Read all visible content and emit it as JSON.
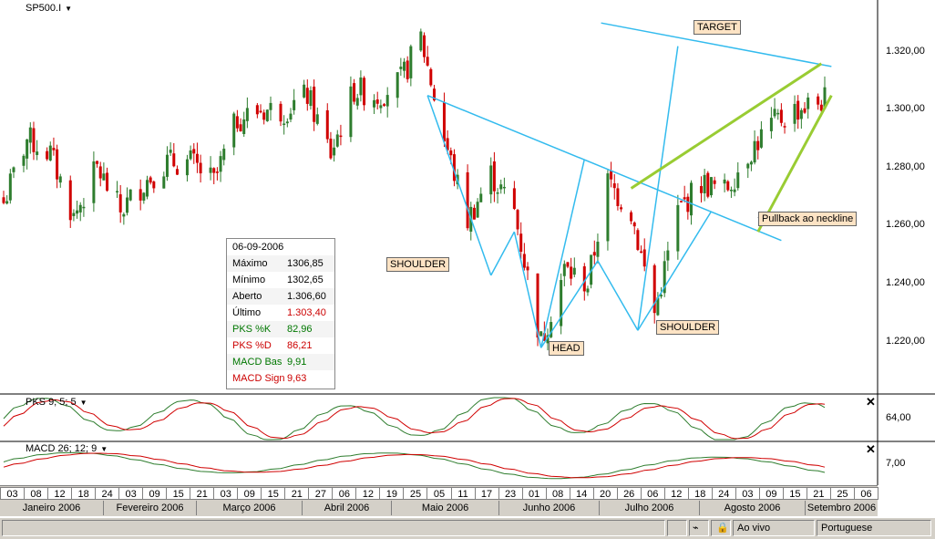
{
  "symbol": "SP500.I",
  "info_panel": {
    "date": "06-09-2006",
    "rows": [
      {
        "label": "Máximo",
        "value": "1306,85",
        "color": "#000000"
      },
      {
        "label": "Mínimo",
        "value": "1302,65",
        "color": "#000000"
      },
      {
        "label": "Aberto",
        "value": "1.306,60",
        "color": "#000000"
      },
      {
        "label": "Último",
        "value": "1.303,40",
        "color": "#cc0000"
      },
      {
        "label": "PKS %K",
        "value": "82,96",
        "color": "#007700"
      },
      {
        "label": "PKS %D",
        "value": "86,21",
        "color": "#cc0000"
      },
      {
        "label": "MACD Bas",
        "value": "9,91",
        "color": "#007700"
      },
      {
        "label": "MACD Sign",
        "value": "9,63",
        "color": "#cc0000"
      }
    ]
  },
  "annotations": {
    "target": "TARGET",
    "shoulder_left": "SHOULDER",
    "head": "HEAD",
    "shoulder_right": "SHOULDER",
    "pullback": "Pullback ao neckline"
  },
  "y_axis_labels": [
    "1.320,00",
    "1.300,00",
    "1.280,00",
    "1.260,00",
    "1.240,00",
    "1.220,00"
  ],
  "pks_panel": {
    "label": "PKS 9; 5; 5",
    "axis_label": "64,00"
  },
  "macd_panel": {
    "label": "MACD 26; 12; 9",
    "axis_label": "7,00"
  },
  "time_axis": {
    "days": [
      "03",
      "08",
      "12",
      "18",
      "24",
      "03",
      "09",
      "15",
      "21",
      "03",
      "09",
      "15",
      "21",
      "27",
      "06",
      "12",
      "19",
      "25",
      "05",
      "11",
      "17",
      "23",
      "01",
      "08",
      "14",
      "20",
      "26",
      "06",
      "12",
      "18",
      "24",
      "03",
      "09",
      "15",
      "21",
      "25",
      "06"
    ],
    "months": [
      "Janeiro 2006",
      "Fevereiro 2006",
      "Março 2006",
      "Abril 2006",
      "Maio 2006",
      "Junho 2006",
      "Julho 2006",
      "Agosto 2006",
      "Setembro 2006"
    ]
  },
  "status_bar": {
    "mode": "Ao vivo",
    "language": "Portuguese"
  },
  "colors": {
    "up": "#2e7d2e",
    "down": "#d00000",
    "neck": "#33bbee",
    "trend": "#99cc33",
    "annotation_bg": "#fde3c4"
  },
  "chart_data": {
    "type": "candlestick",
    "title": "SP500.I",
    "x_range": [
      "2006-01-03",
      "2006-09-06"
    ],
    "ylim": [
      1200,
      1335
    ],
    "close_series": [
      [
        "2006-01-03",
        1268
      ],
      [
        "2006-01-10",
        1290
      ],
      [
        "2006-01-17",
        1285
      ],
      [
        "2006-01-24",
        1263
      ],
      [
        "2006-01-31",
        1280
      ],
      [
        "2006-02-07",
        1265
      ],
      [
        "2006-02-14",
        1275
      ],
      [
        "2006-02-21",
        1282
      ],
      [
        "2006-02-28",
        1282
      ],
      [
        "2006-03-07",
        1275
      ],
      [
        "2006-03-14",
        1297
      ],
      [
        "2006-03-21",
        1300
      ],
      [
        "2006-03-28",
        1300
      ],
      [
        "2006-04-04",
        1305
      ],
      [
        "2006-04-11",
        1285
      ],
      [
        "2006-04-18",
        1307
      ],
      [
        "2006-04-25",
        1305
      ],
      [
        "2006-05-02",
        1310
      ],
      [
        "2006-05-08",
        1325
      ],
      [
        "2006-05-15",
        1290
      ],
      [
        "2006-05-22",
        1262
      ],
      [
        "2006-05-29",
        1278
      ],
      [
        "2006-06-05",
        1265
      ],
      [
        "2006-06-13",
        1220
      ],
      [
        "2006-06-20",
        1245
      ],
      [
        "2006-06-27",
        1240
      ],
      [
        "2006-07-03",
        1275
      ],
      [
        "2006-07-10",
        1265
      ],
      [
        "2006-07-17",
        1230
      ],
      [
        "2006-07-24",
        1265
      ],
      [
        "2006-07-31",
        1275
      ],
      [
        "2006-08-07",
        1272
      ],
      [
        "2006-08-14",
        1285
      ],
      [
        "2006-08-21",
        1295
      ],
      [
        "2006-08-28",
        1300
      ],
      [
        "2006-09-06",
        1303.4
      ]
    ],
    "pattern": "head and shoulders (inverted)",
    "annotation_levels": {
      "neckline_start": [
        "2006-05-10",
        1305
      ],
      "neckline_end": [
        "2006-08-17",
        1258
      ],
      "target_point": [
        "2006-07-24",
        1322
      ],
      "trend_channel_upper": [
        [
          "2006-07-10",
          1273
        ],
        [
          "2006-09-05",
          1316
        ]
      ],
      "trend_channel_lower": [
        [
          "2006-08-17",
          1258
        ],
        [
          "2006-09-08",
          1305
        ]
      ]
    }
  }
}
